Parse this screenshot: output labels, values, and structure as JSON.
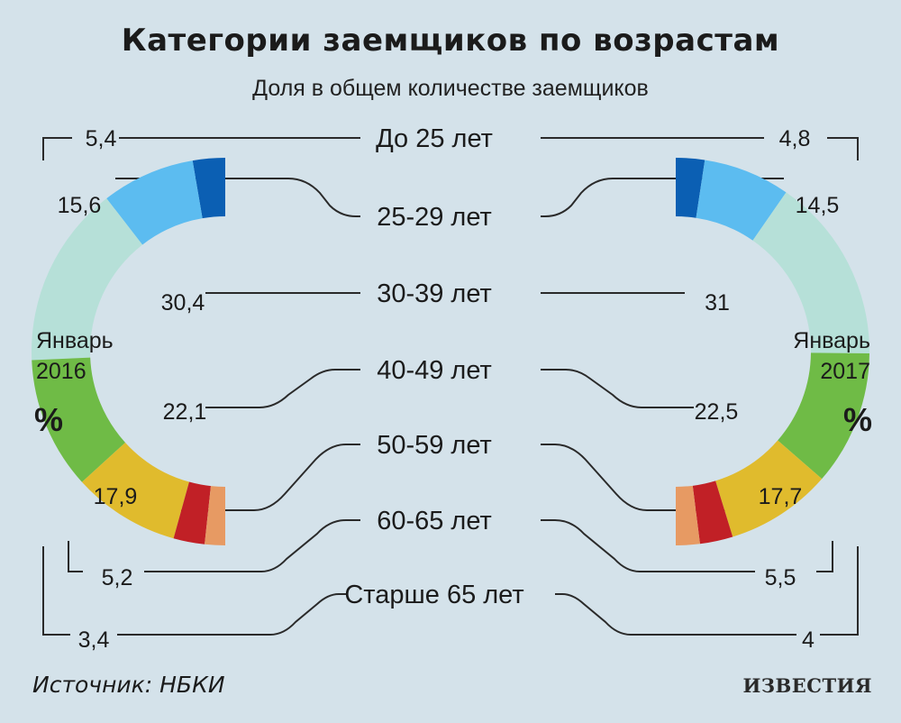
{
  "header": {
    "title": "Категории заемщиков по возрастам",
    "subtitle": "Доля в общем количестве заемщиков"
  },
  "chart_data": {
    "type": "donut-pair",
    "unit": "%",
    "categories": [
      "До 25 лет",
      "25-29 лет",
      "30-39 лет",
      "40-49 лет",
      "50-59 лет",
      "60-65 лет",
      "Старше 65 лет"
    ],
    "colors": [
      "#0b5fb3",
      "#5cbcf0",
      "#b6e0d8",
      "#6fbb46",
      "#e0bb2d",
      "#c12026",
      "#e79a63"
    ],
    "series": [
      {
        "name": "Январь 2016",
        "name_line1": "Январь",
        "name_line2": "2016",
        "side": "left",
        "values": [
          5.4,
          15.6,
          30.4,
          22.1,
          17.9,
          5.2,
          3.4
        ],
        "labels": [
          "5,4",
          "15,6",
          "30,4",
          "22,1",
          "17,9",
          "5,2",
          "3,4"
        ]
      },
      {
        "name": "Январь 2017",
        "name_line1": "Январь",
        "name_line2": "2017",
        "side": "right",
        "values": [
          4.8,
          14.5,
          31,
          22.5,
          17.7,
          5.5,
          4
        ],
        "labels": [
          "4,8",
          "14,5",
          "31",
          "22,5",
          "17,7",
          "5,5",
          "4"
        ]
      }
    ]
  },
  "footer": {
    "source": "Источник: НБКИ",
    "brand": "ИЗВЕСТИЯ"
  }
}
